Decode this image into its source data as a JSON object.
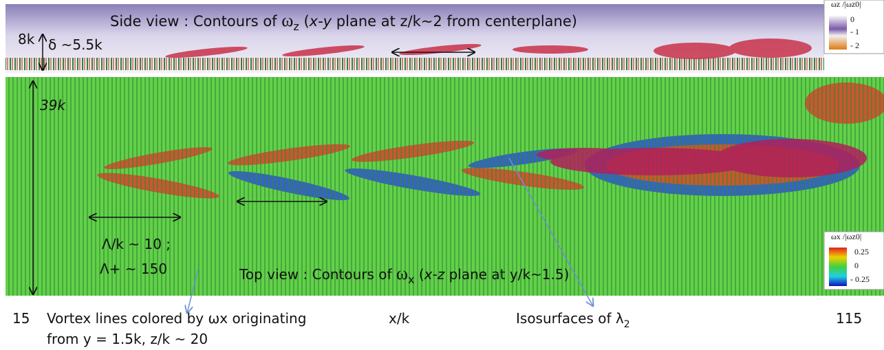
{
  "side_view": {
    "title": {
      "prefix": "Side view : Contours of ",
      "symbol": "ω",
      "subscript": "z",
      "open": " (",
      "plane": "x-y",
      "suffix": " plane at z/k~2 from centerplane)"
    },
    "height_label": "8k",
    "thickness_label": "δ ~5.5k",
    "legend": {
      "title": "ωz /|ωz0|",
      "labels": [
        "0",
        "- 1",
        "- 2"
      ]
    }
  },
  "top_view": {
    "title": {
      "prefix": "Top view : Contours of ",
      "symbol": "ω",
      "subscript": "x",
      "open": " (",
      "plane": "x-z",
      "suffix": " plane at y/k~1.5)"
    },
    "width_label": "39k",
    "wavelength_label": "Λ/k ~ 10 ;",
    "wavelength_plus_label": "Λ+ ~ 150",
    "legend": {
      "title": "ωx /|ωz0|",
      "labels": [
        "0.25",
        "0",
        "- 0.25"
      ]
    }
  },
  "footer": {
    "x_start": "15",
    "vortex_note": [
      "Vortex lines colored by ωx originating",
      "from y = 1.5k, z/k ~ 20"
    ],
    "x_axis": "x/k",
    "isosurface_prefix": "Isosurfaces of λ",
    "isosurface_subscript": "2",
    "x_end": "115"
  }
}
